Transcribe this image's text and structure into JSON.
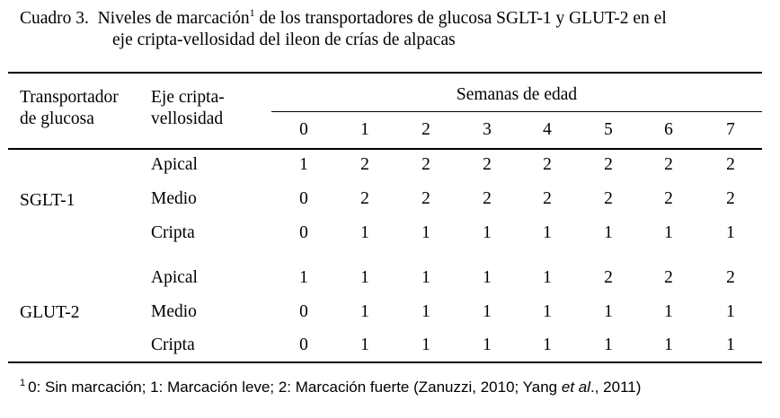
{
  "caption": {
    "label": "Cuadro 3.",
    "text_before_sup": "Niveles de marcación",
    "sup": "1",
    "text_after_sup": " de los transportadores de glucosa SGLT-1 y GLUT-2 en el",
    "line2": "eje cripta-vellosidad del ileon de crías de alpacas"
  },
  "header": {
    "transportador_line1": "Transportador",
    "transportador_line2": "de glucosa",
    "eje_line1": "Eje cripta-",
    "eje_line2": "vellosidad",
    "semanas": "Semanas de edad",
    "weeks": [
      "0",
      "1",
      "2",
      "3",
      "4",
      "5",
      "6",
      "7"
    ]
  },
  "groups": [
    {
      "name": "SGLT-1",
      "rows": [
        {
          "region": "Apical",
          "values": [
            "1",
            "2",
            "2",
            "2",
            "2",
            "2",
            "2",
            "2"
          ]
        },
        {
          "region": "Medio",
          "values": [
            "0",
            "2",
            "2",
            "2",
            "2",
            "2",
            "2",
            "2"
          ]
        },
        {
          "region": "Cripta",
          "values": [
            "0",
            "1",
            "1",
            "1",
            "1",
            "1",
            "1",
            "1"
          ]
        }
      ]
    },
    {
      "name": "GLUT-2",
      "rows": [
        {
          "region": "Apical",
          "values": [
            "1",
            "1",
            "1",
            "1",
            "1",
            "2",
            "2",
            "2"
          ]
        },
        {
          "region": "Medio",
          "values": [
            "0",
            "1",
            "1",
            "1",
            "1",
            "1",
            "1",
            "1"
          ]
        },
        {
          "region": "Cripta",
          "values": [
            "0",
            "1",
            "1",
            "1",
            "1",
            "1",
            "1",
            "1"
          ]
        }
      ]
    }
  ],
  "footnote": {
    "sup": "1",
    "text_before_italic": "0: Sin marcación;  1: Marcación leve;  2: Marcación fuerte (Zanuzzi, 2010; Yang ",
    "italic": "et al",
    "text_after_italic": "., 2011)"
  }
}
